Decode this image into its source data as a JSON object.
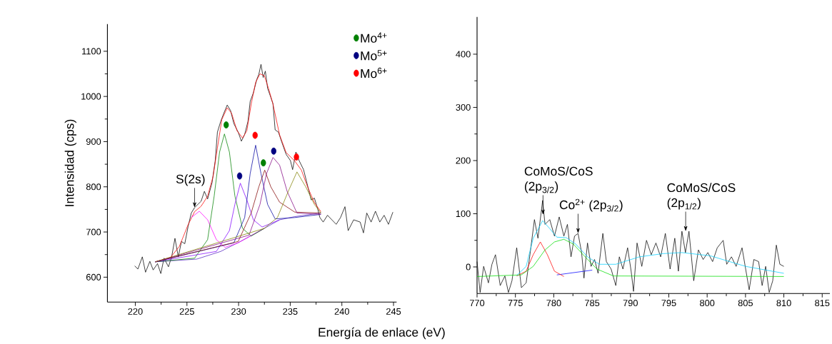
{
  "chart_data": [
    {
      "type": "line",
      "xlabel": "Energía de enlace (eV)",
      "ylabel": "Intensidad (cps)",
      "xlim": [
        217.3,
        245.3
      ],
      "ylim": [
        545,
        1160
      ],
      "xticks": [
        220,
        225,
        230,
        235,
        240,
        245
      ],
      "yticks": [
        600,
        700,
        800,
        900,
        1000,
        1100
      ],
      "legend": "top right",
      "annotations": [
        {
          "text": "S(2s)",
          "x": 225.74,
          "y": 754
        }
      ],
      "series": [
        {
          "color": "#000000",
          "x": [
            219.94,
            220.25,
            220.68,
            220.99,
            221.41,
            221.73,
            222.15,
            222.47,
            222.78,
            223.21,
            223.52,
            223.84,
            224.16,
            224.47,
            224.79,
            225.11,
            225.42,
            225.74,
            226.05,
            226.37,
            226.69,
            227.0,
            227.43,
            227.74,
            227.95,
            228.27,
            228.59,
            228.9,
            229.22,
            229.54,
            229.96,
            230.27,
            230.59,
            230.91,
            231.12,
            231.43,
            231.75,
            231.96,
            232.17,
            232.38,
            232.59,
            232.81,
            233.12,
            233.33,
            233.54,
            233.86,
            234.18,
            234.6,
            235.02,
            235.23,
            235.55,
            235.86,
            236.29,
            236.71,
            237.03,
            237.34,
            237.66,
            237.87,
            238.19,
            238.61,
            239.03,
            239.45,
            239.87,
            240.3,
            240.61,
            241.14,
            241.77,
            242.09,
            242.41,
            242.83,
            243.25,
            243.67,
            244.09,
            244.51,
            244.94
          ],
          "values": [
            625,
            618,
            645,
            611,
            635,
            616,
            630,
            608,
            642,
            623,
            645,
            686,
            645,
            679,
            674,
            712,
            742,
            754,
            761,
            768,
            790,
            773,
            809,
            858,
            921,
            945,
            964,
            981,
            969,
            940,
            921,
            901,
            916,
            945,
            989,
            1008,
            1037,
            1049,
            1071,
            1042,
            1056,
            1018,
            998,
            984,
            926,
            921,
            899,
            872,
            858,
            838,
            877,
            858,
            838,
            800,
            771,
            775,
            751,
            732,
            722,
            737,
            727,
            717,
            732,
            756,
            703,
            727,
            722,
            698,
            742,
            722,
            746,
            722,
            737,
            717,
            744
          ]
        },
        {
          "color": "#ff0000",
          "x": [
            221.94,
            223.42,
            224.26,
            225.11,
            225.74,
            226.37,
            227.0,
            227.53,
            227.95,
            228.38,
            228.9,
            229.32,
            229.85,
            230.38,
            230.8,
            231.22,
            231.65,
            232.07,
            232.49,
            232.91,
            233.33,
            233.97,
            234.6,
            235.44,
            236.08,
            236.71,
            237.34,
            237.97
          ],
          "values": [
            634,
            644,
            668,
            716,
            745,
            757,
            779,
            823,
            886,
            949,
            975,
            963,
            924,
            908,
            924,
            983,
            1031,
            1050,
            1046,
            1017,
            983,
            915,
            876,
            857,
            837,
            798,
            765,
            745
          ]
        },
        {
          "color": "#5020c0",
          "x": [
            221.94,
            225.95,
            228.27,
            230.17,
            232.49,
            233.97,
            235.44,
            237.97
          ],
          "values": [
            634,
            640,
            657,
            679,
            708,
            727,
            734,
            742
          ]
        },
        {
          "color": "#ff00ff",
          "x": [
            221.94,
            223.84,
            224.89,
            225.42,
            226.2,
            227.0,
            227.85,
            228.69,
            229.96,
            232.49
          ],
          "values": [
            634,
            645,
            null,
            732,
            746,
            727,
            683,
            666,
            676,
            708
          ]
        },
        {
          "color": "#008000",
          "x": [
            221.94,
            225.74,
            227.0,
            227.64,
            228.16,
            228.63,
            229.11,
            229.64,
            230.38,
            231.22,
            232.49
          ],
          "values": [
            634,
            642,
            683,
            780,
            877,
            917,
            877,
            780,
            708,
            691,
            708
          ]
        },
        {
          "color": "#8000ff",
          "x": [
            221.94,
            227.85,
            229.11,
            229.64,
            230.17,
            230.8,
            231.43,
            232.28,
            233.97
          ],
          "values": [
            634,
            657,
            703,
            761,
            808,
            771,
            727,
            711,
            727
          ]
        },
        {
          "color": "#0000a0",
          "x": [
            221.94,
            229.54,
            230.59,
            231.12,
            231.65,
            232.17,
            232.81,
            233.54,
            235.44,
            237.97
          ],
          "values": [
            634,
            676,
            732,
            829,
            892,
            829,
            761,
            729,
            732,
            739
          ]
        },
        {
          "color": "#800000",
          "x": [
            221.94,
            229.96,
            231.22,
            231.96,
            232.53,
            233.12,
            233.97,
            235.44,
            237.97
          ],
          "values": [
            634,
            679,
            742,
            800,
            837,
            800,
            766,
            744,
            742
          ]
        },
        {
          "color": "#800080",
          "x": [
            221.94,
            231.01,
            232.07,
            232.7,
            233.33,
            233.97,
            234.7,
            235.65,
            237.97
          ],
          "values": [
            634,
            693,
            761,
            829,
            865,
            848,
            790,
            742,
            739
          ]
        },
        {
          "color": "#808000",
          "x": [
            221.94,
            232.49,
            233.76,
            234.81,
            235.65,
            236.5,
            237.34,
            237.97
          ],
          "values": [
            634,
            708,
            732,
            790,
            833,
            800,
            761,
            742
          ]
        },
        {
          "type": "scatter",
          "name": "Mo$^{4+}$",
          "color": "#008000",
          "marker": "circle",
          "x": [
            228.8,
            232.4
          ],
          "values": [
            937,
            853
          ]
        },
        {
          "type": "scatter",
          "name": "Mo$^{5+}$",
          "color": "#000080",
          "marker": "circle",
          "x": [
            230.1,
            233.4
          ],
          "values": [
            824,
            879
          ]
        },
        {
          "type": "scatter",
          "name": "Mo$^{6+}$",
          "color": "#ff0000",
          "marker": "circle",
          "x": [
            231.6,
            235.6
          ],
          "values": [
            914,
            866
          ]
        }
      ]
    },
    {
      "type": "line",
      "xlim": [
        770,
        816
      ],
      "ylim": [
        -50,
        470
      ],
      "xticks": [
        770,
        775,
        780,
        785,
        790,
        795,
        800,
        805,
        810,
        815
      ],
      "yticks": [
        0,
        100,
        200,
        300,
        400
      ],
      "annotations": [
        {
          "text": "CoMoS/CoS (2p$_{3/2}$)",
          "x": 778.6,
          "y": 98
        },
        {
          "text": "Co$^{2+}$ (2p$_{3/2}$)",
          "x": 783.17,
          "y": 63
        },
        {
          "text": "CoMoS/CoS (2p$_{1/2}$)",
          "x": 797.2,
          "y": 67
        }
      ],
      "series": [
        {
          "color": "#000000",
          "x": [
            770.0,
            770.4,
            770.86,
            771.48,
            771.94,
            772.4,
            773.02,
            773.63,
            774.09,
            774.55,
            775.17,
            775.78,
            776.4,
            776.86,
            777.48,
            777.94,
            778.55,
            778.86,
            779.48,
            780.09,
            780.71,
            781.32,
            781.78,
            782.25,
            782.71,
            783.17,
            783.63,
            783.94,
            784.4,
            784.86,
            785.32,
            785.78,
            786.4,
            786.86,
            787.48,
            788.09,
            788.55,
            789.02,
            789.63,
            790.09,
            790.4,
            790.86,
            791.48,
            792.09,
            792.71,
            793.32,
            793.94,
            794.55,
            795.17,
            795.78,
            796.25,
            796.71,
            797.17,
            797.63,
            798.25,
            798.86,
            799.48,
            800.09,
            800.71,
            801.32,
            802.09,
            802.55,
            803.17,
            803.78,
            804.55,
            805.02,
            805.48,
            806.09,
            806.71,
            807.17,
            807.63,
            808.09,
            808.55,
            809.02,
            809.48,
            810.0
          ],
          "values": [
            10,
            -48,
            1,
            -30,
            5,
            23,
            -35,
            -17,
            -48,
            -26,
            36,
            -39,
            -30,
            19,
            89,
            54,
            125,
            80,
            89,
            58,
            94,
            58,
            80,
            19,
            58,
            63,
            27,
            -21,
            45,
            1,
            14,
            -12,
            63,
            10,
            -4,
            -35,
            19,
            -4,
            36,
            -8,
            -46,
            45,
            1,
            50,
            23,
            45,
            19,
            63,
            -4,
            54,
            -8,
            67,
            27,
            67,
            -26,
            32,
            14,
            27,
            10,
            36,
            50,
            5,
            19,
            1,
            36,
            -4,
            -43,
            14,
            10,
            -35,
            1,
            -48,
            -26,
            41,
            5,
            1
          ]
        },
        {
          "color": "#0000ff",
          "x": [
            780.4,
            785.02
          ],
          "values": [
            -15,
            -6
          ]
        },
        {
          "color": "#ff0000",
          "x": [
            775.17,
            776.4,
            777.32,
            778.25,
            779.17,
            780.09,
            781.32
          ],
          "values": [
            -17,
            -8,
            23,
            47,
            23,
            -8,
            -18
          ]
        },
        {
          "color": "#00dd00",
          "x": [
            770.0,
            775.78,
            777.32,
            778.86,
            780.09,
            781.32,
            782.55,
            784.09,
            785.63,
            787.78,
            810.0
          ],
          "values": [
            -18,
            -15,
            1,
            32,
            47,
            52,
            43,
            19,
            -4,
            -17,
            -18
          ]
        },
        {
          "color": "#00ccff",
          "x": [
            775.17,
            776.4,
            777.32,
            778.55,
            779.48,
            780.4,
            781.63,
            782.86,
            784.4,
            785.94,
            788.09,
            791.17,
            794.25,
            796.71,
            800.4,
            805.02,
            810.0
          ],
          "values": [
            -16,
            1,
            54,
            87,
            72,
            56,
            55,
            43,
            19,
            5,
            5,
            19,
            25,
            27,
            21,
            1,
            -12
          ]
        }
      ]
    }
  ]
}
